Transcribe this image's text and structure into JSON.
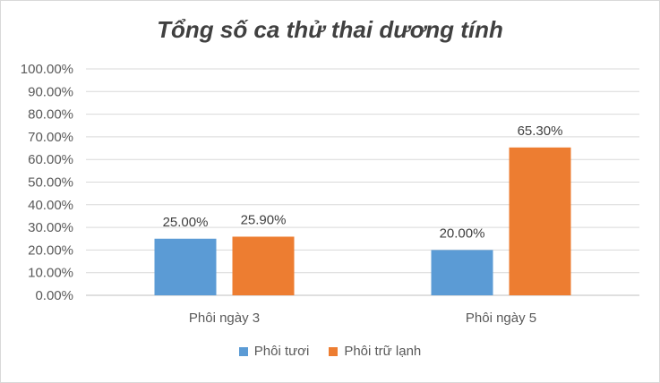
{
  "chart_data": {
    "type": "bar",
    "title": "Tổng số ca thử thai dương tính",
    "categories": [
      "Phôi ngày 3",
      "Phôi ngày 5"
    ],
    "series": [
      {
        "name": "Phôi tươi",
        "values": [
          25.0,
          20.0
        ],
        "labels": [
          "25.00%",
          "20.00%"
        ],
        "color": "#5b9bd5"
      },
      {
        "name": "Phôi trữ lạnh",
        "values": [
          25.9,
          65.3
        ],
        "labels": [
          "25.90%",
          "65.30%"
        ],
        "color": "#ed7d31"
      }
    ],
    "ylim": [
      0,
      100
    ],
    "yticks": [
      "0.00%",
      "10.00%",
      "20.00%",
      "30.00%",
      "40.00%",
      "50.00%",
      "60.00%",
      "70.00%",
      "80.00%",
      "90.00%",
      "100.00%"
    ],
    "grid": true,
    "legend_position": "bottom"
  }
}
